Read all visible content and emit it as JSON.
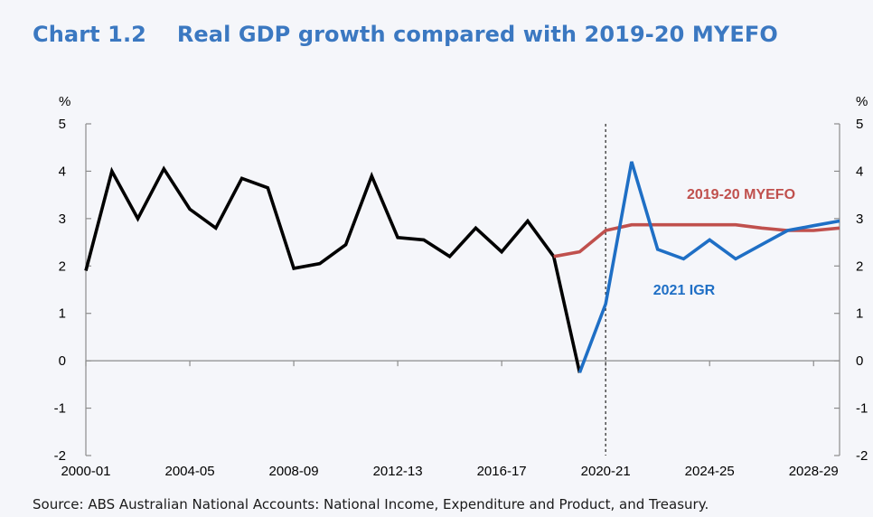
{
  "chart": {
    "number": "Chart 1.2",
    "title": "Real GDP growth compared with 2019-20 MYEFO",
    "source": "Source: ABS Australian National Accounts: National Income, Expenditure and Product, and Treasury."
  },
  "chart_data": {
    "type": "line",
    "title": "Real GDP growth compared with 2019-20 MYEFO",
    "ylabel_left": "%",
    "ylabel_right": "%",
    "ylim": [
      -2,
      5
    ],
    "yticks": [
      -2,
      -1,
      0,
      1,
      2,
      3,
      4,
      5
    ],
    "x": [
      "2000-01",
      "2001-02",
      "2002-03",
      "2003-04",
      "2004-05",
      "2005-06",
      "2006-07",
      "2007-08",
      "2008-09",
      "2009-10",
      "2010-11",
      "2011-12",
      "2012-13",
      "2013-14",
      "2014-15",
      "2015-16",
      "2016-17",
      "2017-18",
      "2018-19",
      "2019-20",
      "2020-21",
      "2021-22",
      "2022-23",
      "2023-24",
      "2024-25",
      "2025-26",
      "2026-27",
      "2027-28",
      "2028-29",
      "2029-30"
    ],
    "xtick_labels": [
      "2000-01",
      "2004-05",
      "2008-09",
      "2012-13",
      "2016-17",
      "2020-21",
      "2024-25",
      "2028-29"
    ],
    "forecast_divider": "2020-21",
    "grid": false,
    "series": [
      {
        "name": "",
        "color": "#000000",
        "values": [
          1.9,
          4.0,
          3.0,
          4.05,
          3.2,
          2.8,
          3.85,
          3.65,
          1.95,
          2.05,
          2.45,
          3.9,
          2.6,
          2.55,
          2.2,
          2.8,
          2.3,
          2.95,
          2.2,
          -0.25,
          null,
          null,
          null,
          null,
          null,
          null,
          null,
          null,
          null,
          null
        ]
      },
      {
        "name": "2019-20 MYEFO",
        "color": "#c0504d",
        "values": [
          null,
          null,
          null,
          null,
          null,
          null,
          null,
          null,
          null,
          null,
          null,
          null,
          null,
          null,
          null,
          null,
          null,
          null,
          2.2,
          2.3,
          2.75,
          2.87,
          2.87,
          2.87,
          2.87,
          2.87,
          2.8,
          2.75,
          2.75,
          2.8
        ]
      },
      {
        "name": "2021 IGR",
        "color": "#1f6fc5",
        "values": [
          null,
          null,
          null,
          null,
          null,
          null,
          null,
          null,
          null,
          null,
          null,
          null,
          null,
          null,
          null,
          null,
          null,
          null,
          null,
          -0.25,
          1.2,
          4.2,
          2.35,
          2.15,
          2.55,
          2.15,
          2.45,
          2.75,
          2.85,
          2.95
        ]
      }
    ]
  }
}
